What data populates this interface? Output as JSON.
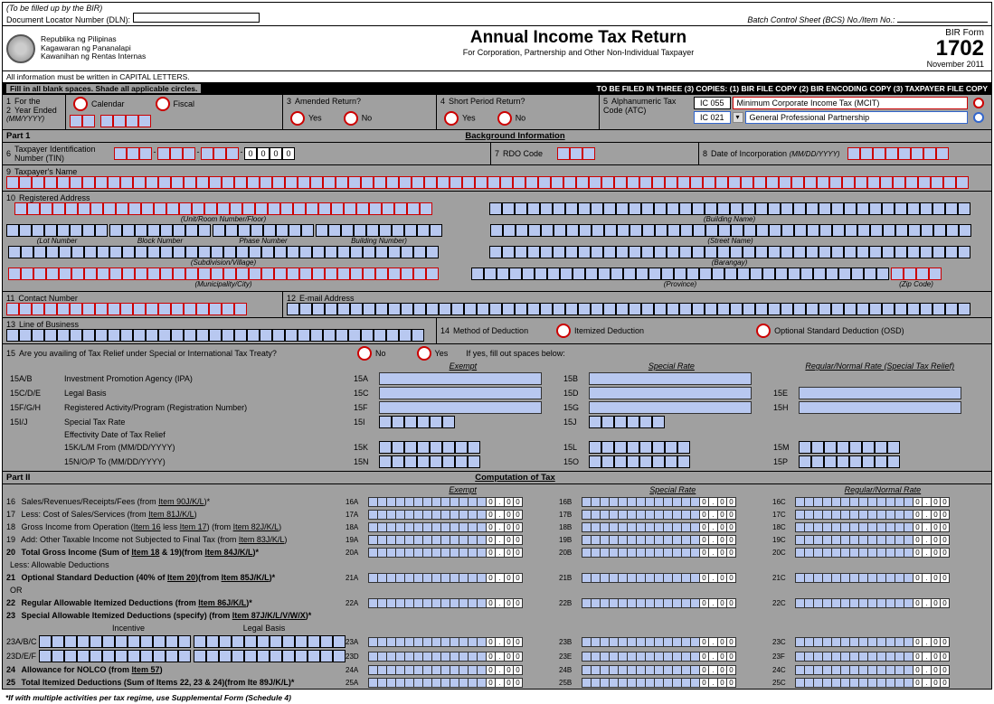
{
  "top": {
    "bir_note": "(To be filled up by the BIR)",
    "dln": "Document Locator Number (DLN):",
    "bcs": "Batch Control Sheet (BCS) No./Item No.:"
  },
  "agency": {
    "l1": "Republika ng Pilipinas",
    "l2": "Kagawaran ng Pananalapi",
    "l3": "Kawanihan ng Rentas Internas",
    "caps": "All information must be written in CAPITAL LETTERS."
  },
  "title": {
    "main": "Annual Income Tax Return",
    "sub": "For Corporation, Partnership and Other Non-Individual Taxpayer"
  },
  "formno": {
    "lbl": "BIR Form",
    "num": "1702",
    "date": "November 2011"
  },
  "instr": {
    "fill": "Fill in all blank spaces. Shade all applicable circles.",
    "filed": "TO BE FILED IN THREE (3) COPIES: (1) BIR FILE COPY (2) BIR ENCODING COPY (3) TAXPAYER FILE COPY"
  },
  "r1": {
    "for_the": "For the",
    "year_ended": "Year Ended",
    "mmyyyy": "(MM/YYYY)",
    "calendar": "Calendar",
    "fiscal": "Fiscal",
    "amended": "Amended Return?",
    "yes": "Yes",
    "no": "No",
    "short": "Short Period Return?",
    "atc_lbl": "Alphanumeric Tax Code (ATC)",
    "atc1": "IC 055",
    "atc1_desc": "Minimum Corporate Income Tax (MCIT)",
    "atc2": "IC 021",
    "atc2_desc": "General Professional Partnership"
  },
  "part1": {
    "hdr": "Part 1",
    "title": "Background Information",
    "l6": "Taxpayer Identification Number (TIN)",
    "tin_last": [
      "0",
      "0",
      "0",
      "0"
    ],
    "l7": "RDO Code",
    "l8": "Date of Incorporation",
    "l8_fmt": "(MM/DD/YYYY)",
    "l9": "Taxpayer's Name",
    "l10": "Registered Address",
    "addr": {
      "unit": "(Unit/Room Number/Floor)",
      "bldg": "(Building Name)",
      "lot": "(Lot Number",
      "block": "Block Number",
      "phase": "Phase Number",
      "bldgno": "Building Number)",
      "street": "(Street Name)",
      "subdiv": "(Subdivision/Village)",
      "brgy": "(Barangay)",
      "muni": "(Municipality/City)",
      "prov": "(Province)",
      "zip": "(Zip Code)"
    },
    "l11": "Contact Number",
    "l12": "E-mail Address",
    "l13": "Line of Business",
    "l14": "Method of Deduction",
    "itemized": "Itemized Deduction",
    "osd": "Optional Standard Deduction (OSD)",
    "l15": "Are you availing of Tax Relief under Special or International Tax Treaty?",
    "ifyes": "If yes, fill out spaces below:",
    "exempt": "Exempt",
    "special": "Special Rate",
    "regular": "Regular/Normal Rate (Special Tax Relief)",
    "l15ab": "15A/B",
    "l15ab_d": "Investment Promotion Agency (IPA)",
    "l15cde": "15C/D/E",
    "l15cde_d": "Legal Basis",
    "l15fgh": "15F/G/H",
    "l15fgh_d": "Registered Activity/Program (Registration Number)",
    "l15ij": "15I/J",
    "l15ij_d": "Special Tax Rate",
    "l15eff": "Effectivity Date of Tax Relief",
    "l15klm": "15K/L/M   From    (MM/DD/YYYY)",
    "l15nop": "15N/O/P   To       (MM/DD/YYYY)"
  },
  "part2": {
    "hdr": "Part II",
    "title": "Computation of Tax",
    "exempt": "Exempt",
    "special": "Special Rate",
    "regular": "Regular/Normal Rate",
    "l16": "Sales/Revenues/Receipts/Fees (from Item 90J/K/L)*",
    "l17": "Less: Cost of Sales/Services  (from Item 81J/K/L)",
    "l18": "Gross Income from Operation  (Item 16 less Item 17) (from Item 82J/K/L)",
    "l19": "Add: Other Taxable Income not Subjected to Final Tax (from Item 83J/K/L)",
    "l20": "Total Gross Income (Sum of Item 18 & 19)(from Item 84J/K/L)*",
    "l20b": "Less: Allowable Deductions",
    "l21": "Optional Standard Deduction (40% of Item 20)(from Item 85J/K/L)*",
    "or": "OR",
    "l22": "Regular Allowable Itemized Deductions (from Item 86J/K/L)*",
    "l23": "Special Allowable Itemized Deductions (specify) (from Item 87J/K/L/V/W/X)*",
    "incentive": "Incentive",
    "legal": "Legal Basis",
    "l23abc": "23A/B/C",
    "l23def": "23D/E/F",
    "l24": "Allowance for NOLCO (from Item 57)",
    "l25": "Total Itemized Deductions (Sum of Items 22, 23 & 24)(from Ite 89J/K/L)*",
    "foot": "*If with multiple activities per tax regime, use Supplemental Form (Schedule 4)"
  },
  "numfmt": {
    "zeros": [
      "0",
      ".",
      "0",
      "0"
    ]
  }
}
